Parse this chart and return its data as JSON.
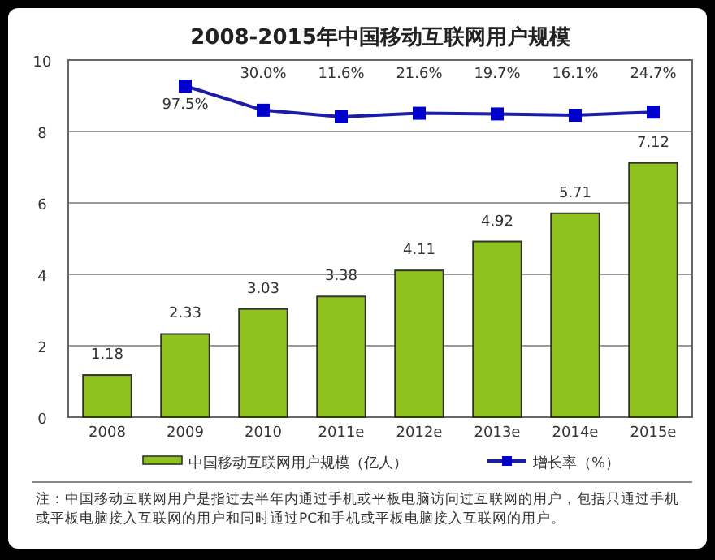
{
  "chart_data": {
    "type": "bar",
    "title": "2008-2015年中国移动互联网用户规模",
    "categories": [
      "2008",
      "2009",
      "2010",
      "2011e",
      "2012e",
      "2013e",
      "2014e",
      "2015e"
    ],
    "series": [
      {
        "name": "中国移动互联网用户规模（亿人）",
        "color": "#8dc21f",
        "values": [
          1.18,
          2.33,
          3.03,
          3.38,
          4.11,
          4.92,
          5.71,
          7.12
        ]
      },
      {
        "name": "增长率（%）",
        "type": "line",
        "axis": "y2",
        "color": "#1c1ca8",
        "values": [
          null,
          97.5,
          30.0,
          11.6,
          21.6,
          19.7,
          16.1,
          24.7
        ],
        "value_labels": [
          null,
          "97.5%",
          "30.0%",
          "11.6%",
          "21.6%",
          "19.7%",
          "16.1%",
          "24.7%"
        ]
      }
    ],
    "ylim": [
      0,
      10
    ],
    "yticks": [
      0,
      2,
      4,
      6,
      8,
      10
    ],
    "grid": "y",
    "legend": "bottom",
    "marker": "square",
    "data_labels": true,
    "annotations": [
      "注：中国移动互联网用户是指过去半年内通过手机或平板电脑访问过互联网的用户，包括只通过手机或平板电脑接入互联网的用户和同时通过PC和手机或平板电脑接入互联网的用户。"
    ]
  }
}
